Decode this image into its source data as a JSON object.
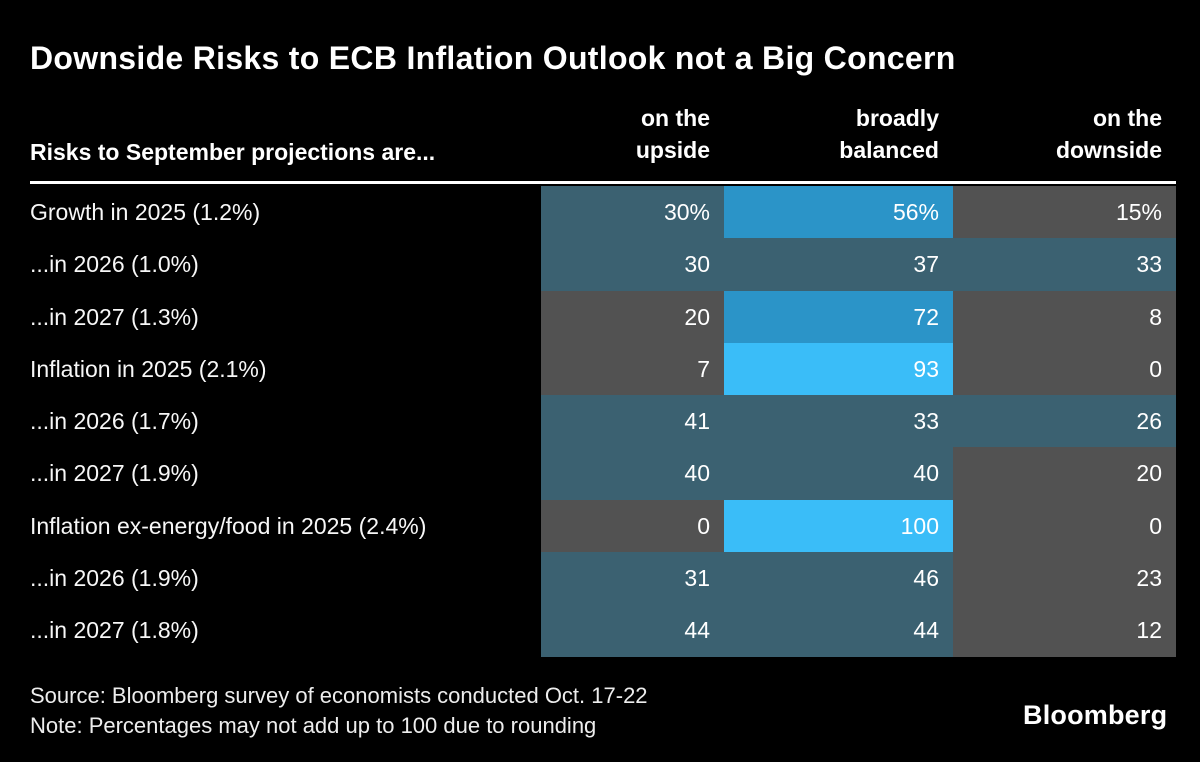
{
  "chart_data": {
    "type": "heatmap",
    "title": "Downside Risks to ECB Inflation Outlook not a Big Concern",
    "row_header": "Risks to September projections are...",
    "columns": [
      "on the upside",
      "broadly balanced",
      "on the downside"
    ],
    "column_headers": [
      {
        "lines": [
          "on the",
          "upside"
        ]
      },
      {
        "lines": [
          "broadly",
          "balanced"
        ]
      },
      {
        "lines": [
          "on the",
          "downside"
        ]
      }
    ],
    "rows": [
      {
        "label": "Growth in 2025 (1.2%)",
        "values": [
          "30%",
          "56%",
          "15%"
        ],
        "numeric": [
          30,
          56,
          15
        ],
        "tones": [
          "mid",
          "high",
          "low"
        ]
      },
      {
        "label": "...in 2026 (1.0%)",
        "values": [
          "30",
          "37",
          "33"
        ],
        "numeric": [
          30,
          37,
          33
        ],
        "tones": [
          "mid",
          "mid",
          "mid"
        ]
      },
      {
        "label": "...in 2027 (1.3%)",
        "values": [
          "20",
          "72",
          "8"
        ],
        "numeric": [
          20,
          72,
          8
        ],
        "tones": [
          "low",
          "high",
          "low"
        ]
      },
      {
        "label": "Inflation in 2025 (2.1%)",
        "values": [
          "7",
          "93",
          "0"
        ],
        "numeric": [
          7,
          93,
          0
        ],
        "tones": [
          "low",
          "max",
          "low"
        ]
      },
      {
        "label": "...in 2026 (1.7%)",
        "values": [
          "41",
          "33",
          "26"
        ],
        "numeric": [
          41,
          33,
          26
        ],
        "tones": [
          "mid",
          "mid",
          "mid"
        ]
      },
      {
        "label": "...in 2027 (1.9%)",
        "values": [
          "40",
          "40",
          "20"
        ],
        "numeric": [
          40,
          40,
          20
        ],
        "tones": [
          "mid",
          "mid",
          "low"
        ]
      },
      {
        "label": "Inflation ex-energy/food in 2025 (2.4%)",
        "values": [
          "0",
          "100",
          "0"
        ],
        "numeric": [
          0,
          100,
          0
        ],
        "tones": [
          "low",
          "max",
          "low"
        ]
      },
      {
        "label": "...in 2026 (1.9%)",
        "values": [
          "31",
          "46",
          "23"
        ],
        "numeric": [
          31,
          46,
          23
        ],
        "tones": [
          "mid",
          "mid",
          "low"
        ]
      },
      {
        "label": "...in 2027 (1.8%)",
        "values": [
          "44",
          "44",
          "12"
        ],
        "numeric": [
          44,
          44,
          12
        ],
        "tones": [
          "mid",
          "mid",
          "low"
        ]
      }
    ],
    "tone_colors": {
      "low": "#525252",
      "mid": "#3B6171",
      "high": "#2B94C8",
      "max": "#3ABDF8"
    },
    "background_color": "#000000",
    "text_color": "#FFFFFF",
    "legend_position": "none",
    "grid": false
  },
  "footer": {
    "source": "Source: Bloomberg survey of economists conducted Oct. 17-22",
    "note": "Note: Percentages may not add up to 100 due to rounding",
    "logo": "Bloomberg"
  }
}
